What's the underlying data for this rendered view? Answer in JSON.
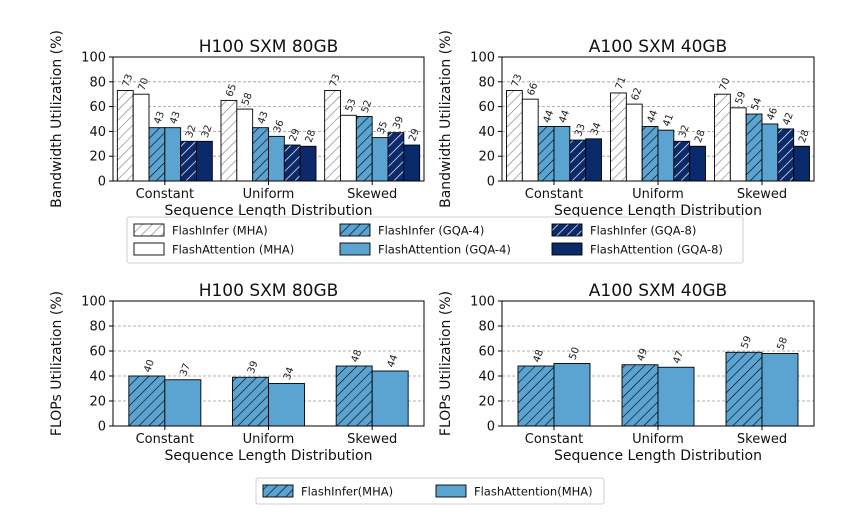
{
  "colors": {
    "white": "#ffffff",
    "light": "#5ba3d0",
    "dark": "#0b2a6b",
    "stroke": "#000000",
    "hatch_gray": "#7a7a7a",
    "hatch_dark": "#000000",
    "hatch_light": "#ffffff",
    "grid": "#999999"
  },
  "chart_data": [
    {
      "type": "bar",
      "title": "H100 SXM 80GB",
      "xlabel": "Sequence Length Distribution",
      "ylabel": "Bandwidth Utilization (%)",
      "ylim": [
        0,
        100
      ],
      "yticks": [
        "0",
        "20",
        "40",
        "60",
        "80",
        "100"
      ],
      "grid": true,
      "categories": [
        "Constant",
        "Uniform",
        "Skewed"
      ],
      "series": [
        {
          "name": "FlashInfer (MHA)",
          "values": [
            73,
            65,
            73
          ]
        },
        {
          "name": "FlashAttention (MHA)",
          "values": [
            70,
            58,
            53
          ]
        },
        {
          "name": "FlashInfer (GQA-4)",
          "values": [
            43,
            43,
            52
          ]
        },
        {
          "name": "FlashAttention (GQA-4)",
          "values": [
            43,
            36,
            35
          ]
        },
        {
          "name": "FlashInfer (GQA-8)",
          "values": [
            32,
            29,
            39
          ]
        },
        {
          "name": "FlashAttention (GQA-8)",
          "values": [
            32,
            28,
            29
          ]
        }
      ]
    },
    {
      "type": "bar",
      "title": "A100 SXM 40GB",
      "xlabel": "Sequence Length Distribution",
      "ylabel": "Bandwidth Utilization (%)",
      "ylim": [
        0,
        100
      ],
      "yticks": [
        "0",
        "20",
        "40",
        "60",
        "80",
        "100"
      ],
      "grid": true,
      "categories": [
        "Constant",
        "Uniform",
        "Skewed"
      ],
      "series": [
        {
          "name": "FlashInfer (MHA)",
          "values": [
            73,
            71,
            70
          ]
        },
        {
          "name": "FlashAttention (MHA)",
          "values": [
            66,
            62,
            59
          ]
        },
        {
          "name": "FlashInfer (GQA-4)",
          "values": [
            44,
            44,
            54
          ]
        },
        {
          "name": "FlashAttention (GQA-4)",
          "values": [
            44,
            41,
            46
          ]
        },
        {
          "name": "FlashInfer (GQA-8)",
          "values": [
            33,
            32,
            42
          ]
        },
        {
          "name": "FlashAttention (GQA-8)",
          "values": [
            34,
            28,
            28
          ]
        }
      ]
    },
    {
      "type": "bar",
      "title": "H100 SXM 80GB",
      "xlabel": "Sequence Length Distribution",
      "ylabel": "FLOPs Utilization (%)",
      "ylim": [
        0,
        100
      ],
      "yticks": [
        "0",
        "20",
        "40",
        "60",
        "80",
        "100"
      ],
      "grid": true,
      "categories": [
        "Constant",
        "Uniform",
        "Skewed"
      ],
      "series": [
        {
          "name": "FlashInfer(MHA)",
          "values": [
            40,
            39,
            48
          ]
        },
        {
          "name": "FlashAttention(MHA)",
          "values": [
            37,
            34,
            44
          ]
        }
      ]
    },
    {
      "type": "bar",
      "title": "A100 SXM 40GB",
      "xlabel": "Sequence Length Distribution",
      "ylabel": "FLOPs Utilization (%)",
      "ylim": [
        0,
        100
      ],
      "yticks": [
        "0",
        "20",
        "40",
        "60",
        "80",
        "100"
      ],
      "grid": true,
      "categories": [
        "Constant",
        "Uniform",
        "Skewed"
      ],
      "series": [
        {
          "name": "FlashInfer(MHA)",
          "values": [
            48,
            49,
            59
          ]
        },
        {
          "name": "FlashAttention(MHA)",
          "values": [
            50,
            47,
            58
          ]
        }
      ]
    }
  ],
  "legend_top": {
    "placement": "between-rows",
    "entries": [
      "FlashInfer (MHA)",
      "FlashInfer (GQA-4)",
      "FlashInfer (GQA-8)",
      "FlashAttention (MHA)",
      "FlashAttention (GQA-4)",
      "FlashAttention (GQA-8)"
    ]
  },
  "legend_bottom": {
    "placement": "bottom-center",
    "entries": [
      "FlashInfer(MHA)",
      "FlashAttention(MHA)"
    ]
  }
}
